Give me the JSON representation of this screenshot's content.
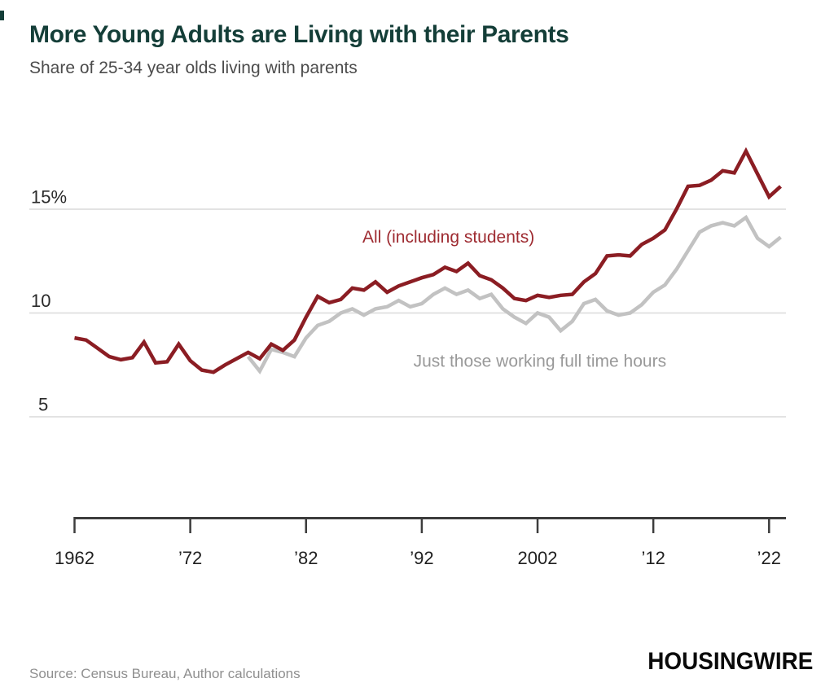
{
  "header": {
    "title": "More Young Adults are Living with their Parents",
    "subtitle": "Share of 25-34 year olds living with parents"
  },
  "chart_data": {
    "type": "line",
    "title": "More Young Adults are Living with their Parents",
    "subtitle": "Share of 25-34 year olds living with parents",
    "xlabel": "",
    "ylabel": "Share of 25-34 year olds living with parents (%)",
    "x_start": 1962,
    "x_end": 2023,
    "ylim": [
      0,
      18.5
    ],
    "grid": "horizontal-only",
    "legend_position": "inline-annotations",
    "x_tick_years": [
      1962,
      1972,
      1982,
      1992,
      2002,
      2012,
      2022
    ],
    "x_tick_labels": [
      "1962",
      "’72",
      "’82",
      "’92",
      "2002",
      "’12",
      "’22"
    ],
    "y_ticks": [
      {
        "label": "15%",
        "value": 15
      },
      {
        "label": "10",
        "value": 10
      },
      {
        "label": "5",
        "value": 5
      }
    ],
    "x": [
      1962,
      1963,
      1964,
      1965,
      1966,
      1967,
      1968,
      1969,
      1970,
      1971,
      1972,
      1973,
      1974,
      1975,
      1976,
      1977,
      1978,
      1979,
      1980,
      1981,
      1982,
      1983,
      1984,
      1985,
      1986,
      1987,
      1988,
      1989,
      1990,
      1991,
      1992,
      1993,
      1994,
      1995,
      1996,
      1997,
      1998,
      1999,
      2000,
      2001,
      2002,
      2003,
      2004,
      2005,
      2006,
      2007,
      2008,
      2009,
      2010,
      2011,
      2012,
      2013,
      2014,
      2015,
      2016,
      2017,
      2018,
      2019,
      2020,
      2021,
      2022,
      2023
    ],
    "series": [
      {
        "name": "All (including students)",
        "color": "#8b1d23",
        "label_color": "#9e2b31",
        "values": [
          8.8,
          8.7,
          8.3,
          7.9,
          7.75,
          7.85,
          8.6,
          7.6,
          7.65,
          8.5,
          7.7,
          7.25,
          7.15,
          7.5,
          7.8,
          8.1,
          7.8,
          8.5,
          8.2,
          8.7,
          9.8,
          10.8,
          10.5,
          10.65,
          11.2,
          11.1,
          11.5,
          11.0,
          11.3,
          11.5,
          11.7,
          11.85,
          12.2,
          12.0,
          12.4,
          11.8,
          11.6,
          11.2,
          10.7,
          10.6,
          10.85,
          10.75,
          10.85,
          10.9,
          11.5,
          11.9,
          12.75,
          12.8,
          12.75,
          13.3,
          13.6,
          14.0,
          15.0,
          16.1,
          16.15,
          16.4,
          16.85,
          16.75,
          17.8,
          16.7,
          15.6,
          16.1
        ]
      },
      {
        "name": "Just those working full time hours",
        "color": "#c2c2c2",
        "label_color": "#999999",
        "values": [
          null,
          null,
          null,
          null,
          null,
          null,
          null,
          null,
          null,
          null,
          null,
          null,
          null,
          null,
          null,
          7.9,
          7.2,
          8.25,
          8.1,
          7.9,
          8.8,
          9.4,
          9.6,
          10.0,
          10.2,
          9.9,
          10.2,
          10.3,
          10.6,
          10.3,
          10.45,
          10.9,
          11.2,
          10.9,
          11.1,
          10.7,
          10.9,
          10.2,
          9.8,
          9.5,
          10.0,
          9.8,
          9.15,
          9.6,
          10.45,
          10.65,
          10.1,
          9.9,
          10.0,
          10.4,
          11.0,
          11.35,
          12.1,
          13.0,
          13.9,
          14.2,
          14.35,
          14.2,
          14.6,
          13.6,
          13.2,
          13.65
        ]
      }
    ],
    "annotations": [
      {
        "text": "All (including students)",
        "x_year": 1994.3,
        "y_value": 13.4,
        "color": "#9e2b31"
      },
      {
        "text": "Just those working full time hours",
        "x_year": 2002.2,
        "y_value": 7.42,
        "color": "#999999"
      }
    ],
    "colors": {
      "gridline": "#e3e3e3",
      "axis": "#3d3d3d",
      "tick_label": "#1f1f1f",
      "y_label": "#2a2a2a"
    }
  },
  "footer": {
    "source": "Source: Census Bureau, Author calculations",
    "logo": "HOUSINGWIRE"
  }
}
